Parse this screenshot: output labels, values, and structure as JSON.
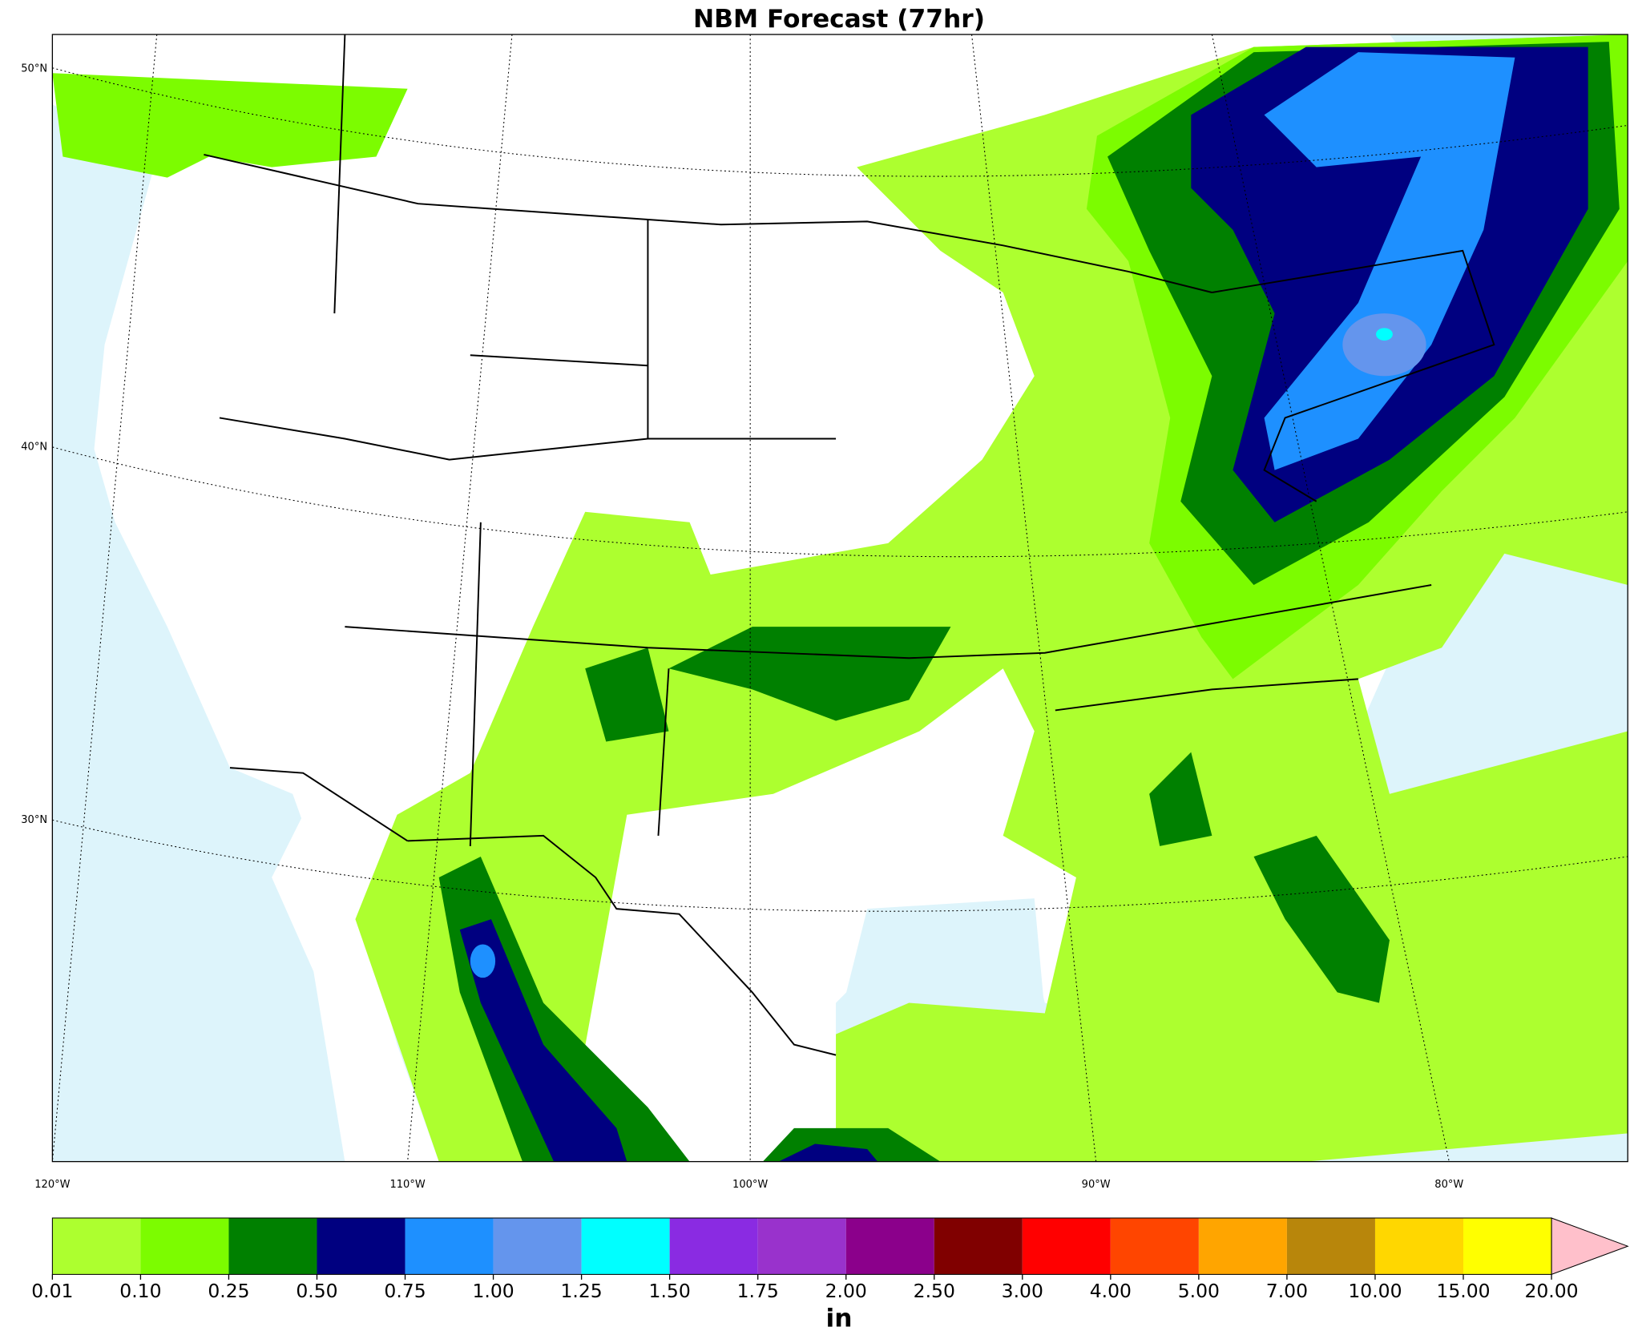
{
  "title": "NBM Forecast (77hr)",
  "map": {
    "lat_labels": [
      "50°N",
      "40°N",
      "30°N"
    ],
    "lon_labels": [
      "120°W",
      "110°W",
      "100°W",
      "90°W",
      "80°W"
    ]
  },
  "colorbar": {
    "unit": "in",
    "bounds": [
      {
        "value": 0.01,
        "label": "0.01"
      },
      {
        "value": 0.1,
        "label": "0.10"
      },
      {
        "value": 0.25,
        "label": "0.25"
      },
      {
        "value": 0.5,
        "label": "0.50"
      },
      {
        "value": 0.75,
        "label": "0.75"
      },
      {
        "value": 1,
        "label": "1.00"
      },
      {
        "value": 1.25,
        "label": "1.25"
      },
      {
        "value": 1.5,
        "label": "1.50"
      },
      {
        "value": 1.75,
        "label": "1.75"
      },
      {
        "value": 2,
        "label": "2.00"
      },
      {
        "value": 2.5,
        "label": "2.50"
      },
      {
        "value": 3,
        "label": "3.00"
      },
      {
        "value": 4,
        "label": "4.00"
      },
      {
        "value": 5,
        "label": "5.00"
      },
      {
        "value": 7,
        "label": "7.00"
      },
      {
        "value": 10,
        "label": "10.00"
      },
      {
        "value": 15,
        "label": "15.00"
      },
      {
        "value": 20,
        "label": "20.00"
      }
    ],
    "colors": [
      "#adff2f",
      "#7cfc00",
      "#008000",
      "#000080",
      "#1e90ff",
      "#6495ed",
      "#00ffff",
      "#8a2be2",
      "#9932cc",
      "#8b008b",
      "#800000",
      "#ff0000",
      "#ff4500",
      "#ffa500",
      "#b8860b",
      "#ffd700",
      "#ffff00"
    ],
    "over_color": "#ffc0cb"
  }
}
